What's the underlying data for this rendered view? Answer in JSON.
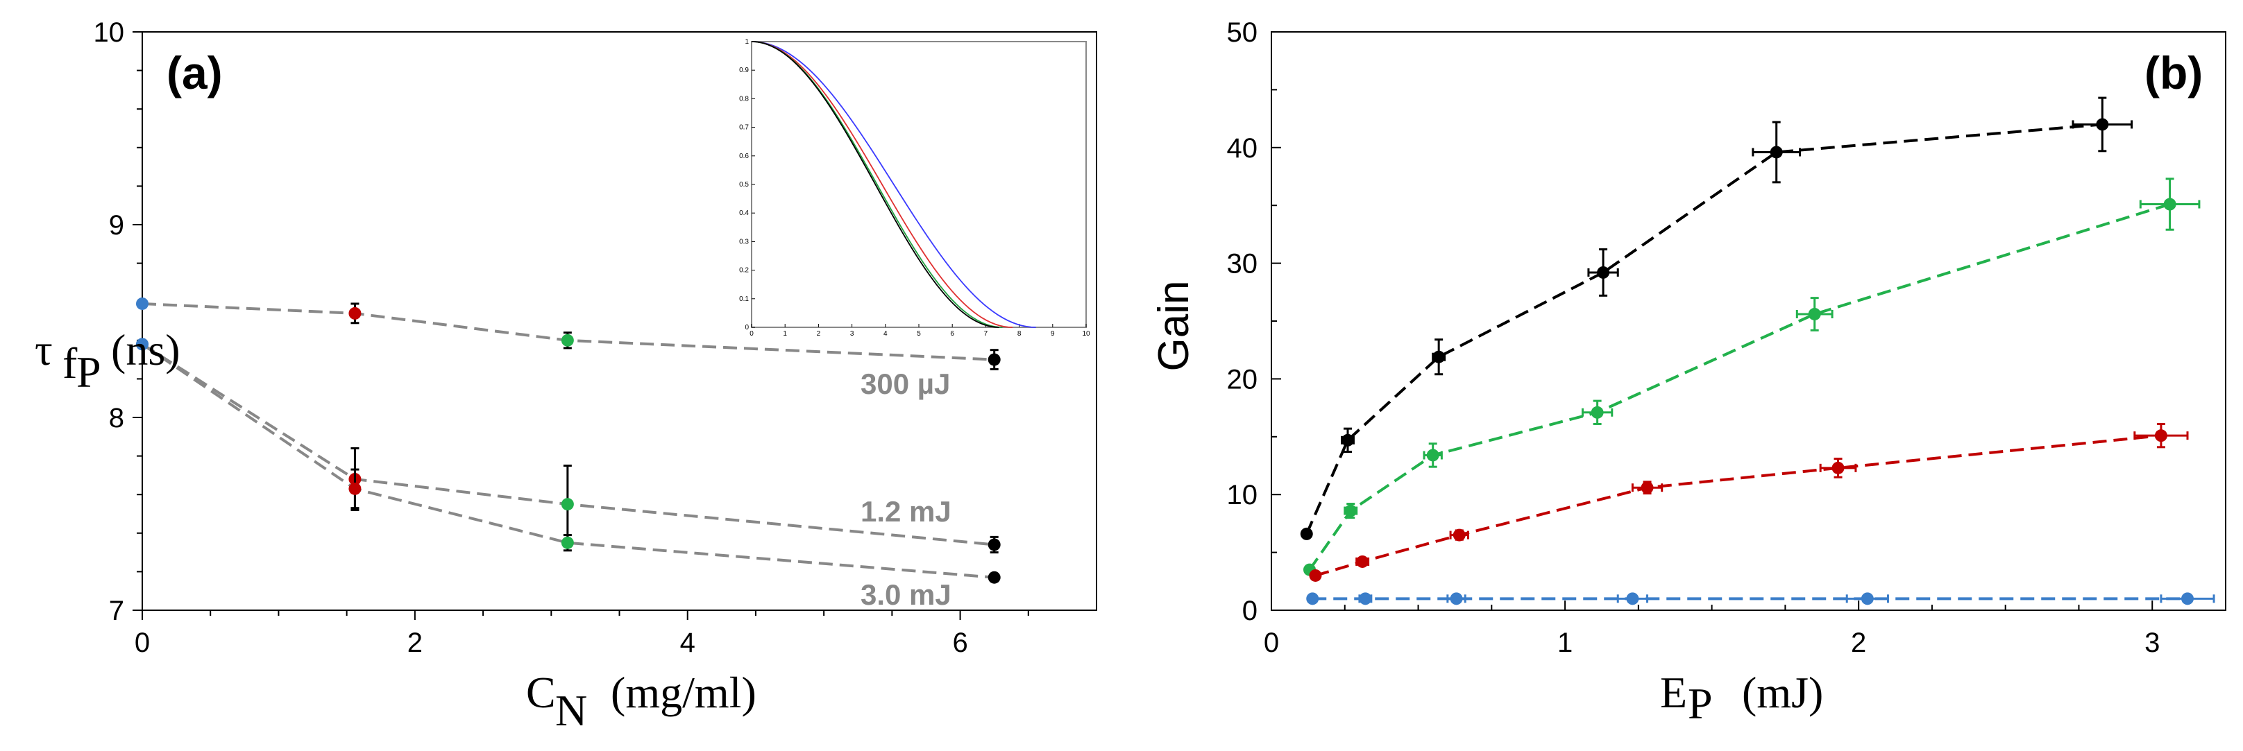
{
  "chart_data": [
    {
      "type": "line",
      "panel_label": "(a)",
      "xlabel_main": "C",
      "xlabel_sub": "N",
      "xlabel_unit": "(mg/ml)",
      "ylabel_main": "τ",
      "ylabel_sub": "f",
      "ylabel_subsub": "P",
      "ylabel_unit": "(ns)",
      "xlim": [
        0,
        7
      ],
      "ylim": [
        7,
        10
      ],
      "xticks": [
        0,
        2,
        4,
        6
      ],
      "yticks": [
        7,
        8,
        9,
        10
      ],
      "xtick_labels": [
        "0",
        "2",
        "4",
        "6"
      ],
      "ytick_labels": [
        "7",
        "8",
        "9",
        "10"
      ],
      "line_color": "#888888",
      "series": [
        {
          "name": "300 µJ",
          "x": [
            0,
            1.56,
            3.12,
            6.25
          ],
          "y": [
            8.59,
            8.54,
            8.4,
            8.3
          ],
          "yerr": [
            0,
            0.05,
            0.04,
            0.05
          ],
          "colors": [
            "#3a7dc9",
            "#c00000",
            "#22b14c",
            "#000000"
          ]
        },
        {
          "name": "1.2 mJ",
          "x": [
            0,
            1.56,
            3.12,
            6.25
          ],
          "y": [
            8.38,
            7.68,
            7.55,
            7.34
          ],
          "yerr": [
            0,
            0.16,
            0.2,
            0.04
          ],
          "colors": [
            "#3a7dc9",
            "#c00000",
            "#22b14c",
            "#000000"
          ]
        },
        {
          "name": "3.0 mJ",
          "x": [
            0,
            1.56,
            3.12,
            6.25
          ],
          "y": [
            8.38,
            7.63,
            7.35,
            7.17
          ],
          "yerr": [
            0,
            0.1,
            0.04,
            0
          ],
          "colors": [
            "#3a7dc9",
            "#c00000",
            "#22b14c",
            "#000000"
          ]
        }
      ],
      "inset": {
        "type": "line",
        "xlim": [
          0,
          10
        ],
        "ylim": [
          0,
          1
        ],
        "xtick_labels": [
          "0",
          "1",
          "2",
          "3",
          "4",
          "5",
          "6",
          "7",
          "8",
          "9",
          "10"
        ],
        "ytick_labels": [
          "0",
          "0.1",
          "0.2",
          "0.3",
          "0.4",
          "0.5",
          "0.6",
          "0.7",
          "0.8",
          "0.9",
          "1"
        ],
        "curves": [
          {
            "color": "#3a3aff",
            "end_x": 8.5
          },
          {
            "color": "#e03030",
            "end_x": 7.8
          },
          {
            "color": "#22a040",
            "end_x": 7.5
          },
          {
            "color": "#000000",
            "end_x": 7.4
          }
        ]
      }
    },
    {
      "type": "line",
      "panel_label": "(b)",
      "xlabel_main": "E",
      "xlabel_sub": "P",
      "xlabel_unit": "(mJ)",
      "ylabel": "Gain",
      "xlim": [
        0,
        3.25
      ],
      "ylim": [
        0,
        50
      ],
      "xticks": [
        0,
        1,
        2,
        3
      ],
      "yticks": [
        0,
        10,
        20,
        30,
        40,
        50
      ],
      "xtick_labels": [
        "0",
        "1",
        "2",
        "3"
      ],
      "ytick_labels": [
        "0",
        "10",
        "20",
        "30",
        "40",
        "50"
      ],
      "series": [
        {
          "name": "black",
          "color": "#000000",
          "x": [
            0.12,
            0.26,
            0.57,
            1.13,
            1.72,
            2.83
          ],
          "y": [
            6.6,
            14.7,
            21.9,
            29.2,
            39.6,
            42.0
          ],
          "yerr": [
            0,
            1.0,
            1.5,
            2.0,
            2.6,
            2.3
          ],
          "xerr": [
            0,
            0.02,
            0.02,
            0.05,
            0.08,
            0.1
          ]
        },
        {
          "name": "green",
          "color": "#22b14c",
          "x": [
            0.13,
            0.27,
            0.55,
            1.11,
            1.85,
            3.06
          ],
          "y": [
            3.5,
            8.6,
            13.4,
            17.1,
            25.6,
            35.1
          ],
          "yerr": [
            0,
            0.6,
            1.0,
            1.0,
            1.4,
            2.2
          ],
          "xerr": [
            0,
            0.02,
            0.03,
            0.05,
            0.06,
            0.1
          ]
        },
        {
          "name": "red",
          "color": "#c00000",
          "x": [
            0.15,
            0.31,
            0.64,
            1.28,
            1.93,
            3.03
          ],
          "y": [
            3.0,
            4.2,
            6.5,
            10.6,
            12.3,
            15.1
          ],
          "yerr": [
            0,
            0.3,
            0.4,
            0.5,
            0.8,
            1.0
          ],
          "xerr": [
            0,
            0.02,
            0.03,
            0.05,
            0.06,
            0.09
          ]
        },
        {
          "name": "blue",
          "color": "#3a7dc9",
          "x": [
            0.14,
            0.32,
            0.63,
            1.23,
            2.03,
            3.12
          ],
          "y": [
            1.0,
            1.0,
            1.0,
            1.0,
            1.0,
            1.0
          ],
          "yerr": [
            0,
            0,
            0,
            0,
            0,
            0
          ],
          "xerr": [
            0,
            0.02,
            0.03,
            0.05,
            0.07,
            0.09
          ]
        }
      ]
    }
  ]
}
